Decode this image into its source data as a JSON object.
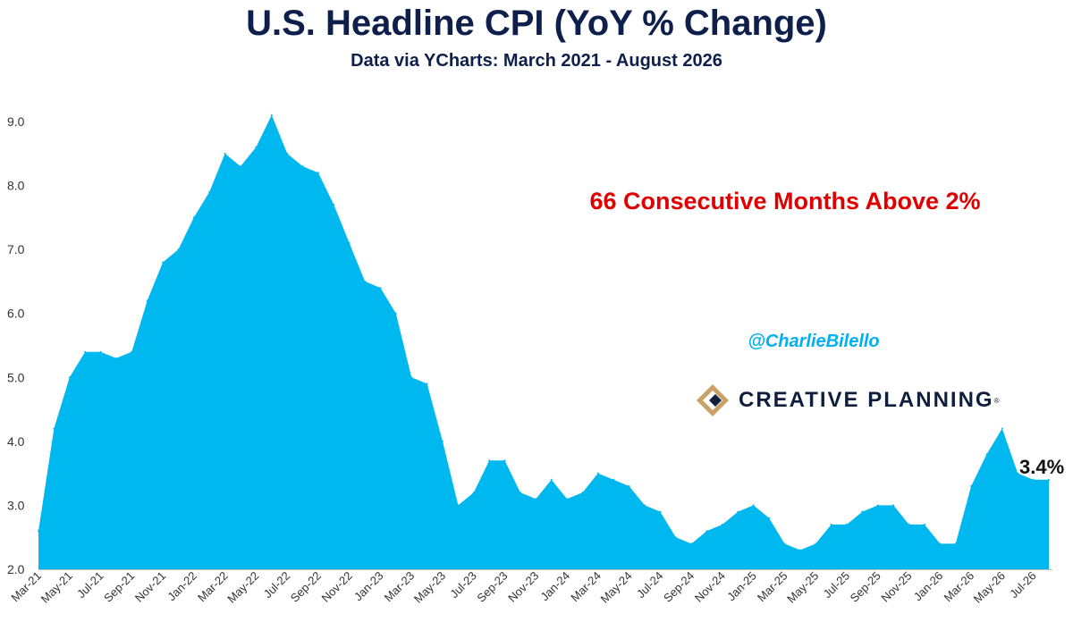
{
  "title": "U.S. Headline CPI (YoY % Change)",
  "subtitle": "Data via YCharts: March 2021 - August 2026",
  "annotation": {
    "text": "66 Consecutive Months Above 2%",
    "color": "#e00000"
  },
  "handle": {
    "text": "@CharlieBilello",
    "color": "#00b0f0"
  },
  "logo": {
    "text": "CREATIVE PLANNING",
    "reg": "®",
    "colors": [
      "#c8a26a",
      "#0e1f3d"
    ],
    "icon": "creative-planning-logo-icon"
  },
  "last_value_label": "3.4%",
  "colors": {
    "area": "#00b8f0",
    "axis": "#bfbfbf"
  },
  "chart_data": {
    "type": "area",
    "ylim": [
      2.0,
      9.0
    ],
    "yticks": [
      "2.0",
      "3.0",
      "4.0",
      "5.0",
      "6.0",
      "7.0",
      "8.0",
      "9.0"
    ],
    "grid": false,
    "x": [
      "Mar-21",
      "Apr-21",
      "May-21",
      "Jun-21",
      "Jul-21",
      "Aug-21",
      "Sep-21",
      "Oct-21",
      "Nov-21",
      "Dec-21",
      "Jan-22",
      "Feb-22",
      "Mar-22",
      "Apr-22",
      "May-22",
      "Jun-22",
      "Jul-22",
      "Aug-22",
      "Sep-22",
      "Oct-22",
      "Nov-22",
      "Dec-22",
      "Jan-23",
      "Feb-23",
      "Mar-23",
      "Apr-23",
      "May-23",
      "Jun-23",
      "Jul-23",
      "Aug-23",
      "Sep-23",
      "Oct-23",
      "Nov-23",
      "Dec-23",
      "Jan-24",
      "Feb-24",
      "Mar-24",
      "Apr-24",
      "May-24",
      "Jun-24",
      "Jul-24",
      "Aug-24",
      "Sep-24",
      "Oct-24",
      "Nov-24",
      "Dec-24",
      "Jan-25",
      "Feb-25",
      "Mar-25",
      "Apr-25",
      "May-25",
      "Jun-25",
      "Jul-25",
      "Aug-25",
      "Sep-25",
      "Oct-25",
      "Nov-25",
      "Dec-25",
      "Jan-26",
      "Feb-26",
      "Mar-26",
      "Apr-26",
      "May-26",
      "Jun-26",
      "Jul-26",
      "Aug-26"
    ],
    "xtick_labels": [
      "Mar-21",
      "May-21",
      "Jul-21",
      "Sep-21",
      "Nov-21",
      "Jan-22",
      "Mar-22",
      "May-22",
      "Jul-22",
      "Sep-22",
      "Nov-22",
      "Jan-23",
      "Mar-23",
      "May-23",
      "Jul-23",
      "Sep-23",
      "Nov-23",
      "Jan-24",
      "Mar-24",
      "May-24",
      "Jul-24",
      "Sep-24",
      "Nov-24",
      "Jan-25",
      "Mar-25",
      "May-25",
      "Jul-25",
      "Sep-25",
      "Nov-25",
      "Jan-26",
      "Mar-26",
      "May-26",
      "Jul-26"
    ],
    "values": [
      2.6,
      4.2,
      5.0,
      5.4,
      5.4,
      5.3,
      5.4,
      6.2,
      6.8,
      7.0,
      7.5,
      7.9,
      8.5,
      8.3,
      8.6,
      9.1,
      8.5,
      8.3,
      8.2,
      7.7,
      7.1,
      6.5,
      6.4,
      6.0,
      5.0,
      4.9,
      4.0,
      3.0,
      3.2,
      3.7,
      3.7,
      3.2,
      3.1,
      3.4,
      3.1,
      3.2,
      3.5,
      3.4,
      3.3,
      3.0,
      2.9,
      2.5,
      2.4,
      2.6,
      2.7,
      2.9,
      3.0,
      2.8,
      2.4,
      2.3,
      2.4,
      2.7,
      2.7,
      2.9,
      3.0,
      3.0,
      2.7,
      2.7,
      2.4,
      2.4,
      3.3,
      3.8,
      4.2,
      3.5,
      3.4,
      3.4
    ]
  }
}
